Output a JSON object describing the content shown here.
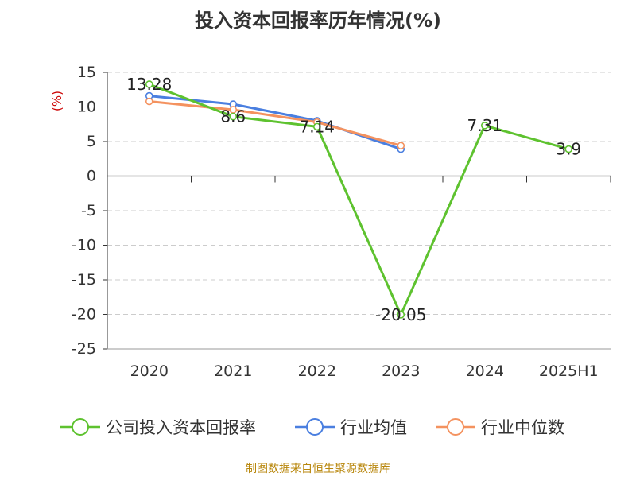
{
  "chart_data": {
    "type": "line",
    "title": "投入资本回报率历年情况(%)",
    "ylabel": "(%)",
    "xlabel": "",
    "categories": [
      "2020",
      "2021",
      "2022",
      "2023",
      "2024",
      "2025H1"
    ],
    "ylim": [
      -25,
      15
    ],
    "yticks": [
      15,
      10,
      5,
      0,
      -5,
      -10,
      -15,
      -20,
      -25
    ],
    "grid": true,
    "legend_position": "bottom",
    "series": [
      {
        "name": "公司投入资本回报率",
        "color": "#5ec22f",
        "values": [
          13.28,
          8.6,
          7.14,
          -20.05,
          7.31,
          3.9
        ],
        "labels": [
          "13.28",
          "8.6",
          "7.14",
          "-20.05",
          "7.31",
          "3.9"
        ]
      },
      {
        "name": "行业均值",
        "color": "#4a7fe0",
        "values": [
          11.6,
          10.4,
          8.0,
          3.9,
          null,
          null
        ]
      },
      {
        "name": "行业中位数",
        "color": "#f4925f",
        "values": [
          10.8,
          9.6,
          7.8,
          4.4,
          null,
          null
        ]
      }
    ]
  },
  "source": "制图数据来自恒生聚源数据库"
}
